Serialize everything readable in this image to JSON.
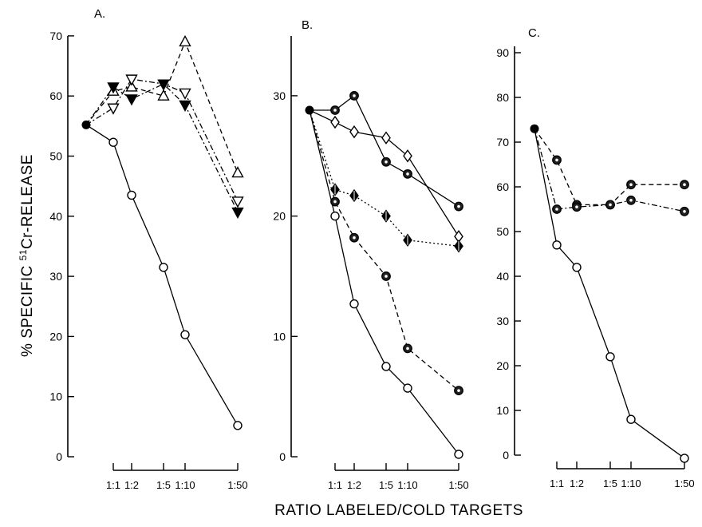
{
  "figure": {
    "ylabel_prefix": "% SPECIFIC ",
    "ylabel_sup": "51",
    "ylabel_suffix": "Cr-RELEASE",
    "xlabel": "RATIO LABELED/COLD TARGETS"
  },
  "chart_data": [
    {
      "type": "line",
      "panel": "A.",
      "ylim": [
        0,
        70
      ],
      "yticks": [
        0,
        10,
        20,
        30,
        40,
        50,
        60,
        70
      ],
      "ytick_labels": [
        "0",
        "10",
        "20",
        "30",
        "40",
        "50",
        "60",
        "70"
      ],
      "x_categories": [
        "1:1",
        "1:2",
        "1:5",
        "1:10",
        "1:50"
      ],
      "start_point": "0:1",
      "grid": false,
      "series": [
        {
          "marker": "open-circle",
          "line": "solid",
          "points": [
            [
              "start",
              55.2
            ],
            [
              "1:1",
              52.3
            ],
            [
              "1:2",
              43.5
            ],
            [
              "1:5",
              31.5
            ],
            [
              "1:10",
              20.3
            ],
            [
              "1:50",
              5.2
            ]
          ]
        },
        {
          "marker": "open-triangle-up",
          "line": "dashed",
          "points": [
            [
              "start",
              55.2
            ],
            [
              "1:1",
              60.8
            ],
            [
              "1:2",
              61.5
            ],
            [
              "1:5",
              60.0
            ],
            [
              "1:10",
              69.0
            ],
            [
              "1:50",
              47.2
            ]
          ]
        },
        {
          "marker": "open-triangle-down",
          "line": "dash-dot",
          "points": [
            [
              "start",
              55.2
            ],
            [
              "1:1",
              58.0
            ],
            [
              "1:2",
              62.8
            ],
            [
              "1:5",
              62.0
            ],
            [
              "1:10",
              60.5
            ],
            [
              "1:50",
              42.5
            ]
          ]
        },
        {
          "marker": "filled-triangle-down",
          "line": "dash-dot",
          "points": [
            [
              "start",
              55.2
            ],
            [
              "1:1",
              61.5
            ],
            [
              "1:2",
              59.5
            ],
            [
              "1:5",
              62.0
            ],
            [
              "1:10",
              58.5
            ],
            [
              "1:50",
              40.7
            ]
          ]
        }
      ]
    },
    {
      "type": "line",
      "panel": "B.",
      "ylim": [
        0,
        35
      ],
      "yticks": [
        0,
        10,
        20,
        30
      ],
      "ytick_labels": [
        "0",
        "10",
        "20",
        "30"
      ],
      "x_categories": [
        "1:1",
        "1:2",
        "1:5",
        "1:10",
        "1:50"
      ],
      "start_point": "0:1",
      "grid": false,
      "series": [
        {
          "marker": "open-circle",
          "line": "solid",
          "points": [
            [
              "start",
              28.8
            ],
            [
              "1:1",
              20.0
            ],
            [
              "1:2",
              12.7
            ],
            [
              "1:5",
              7.5
            ],
            [
              "1:10",
              5.7
            ],
            [
              "1:50",
              0.2
            ]
          ]
        },
        {
          "marker": "dotted-circle",
          "line": "dashed",
          "points": [
            [
              "start",
              28.8
            ],
            [
              "1:1",
              21.2
            ],
            [
              "1:2",
              18.2
            ],
            [
              "1:5",
              15.0
            ],
            [
              "1:10",
              9.0
            ],
            [
              "1:50",
              5.5
            ]
          ]
        },
        {
          "marker": "open-diamond",
          "line": "solid",
          "points": [
            [
              "start",
              28.8
            ],
            [
              "1:1",
              27.8
            ],
            [
              "1:2",
              27.0
            ],
            [
              "1:5",
              26.5
            ],
            [
              "1:10",
              25.0
            ],
            [
              "1:50",
              18.3
            ]
          ]
        },
        {
          "marker": "dotted-circle",
          "line": "solid",
          "points": [
            [
              "start",
              28.8
            ],
            [
              "1:1",
              28.8
            ],
            [
              "1:2",
              30.0
            ],
            [
              "1:5",
              24.5
            ],
            [
              "1:10",
              23.5
            ],
            [
              "1:50",
              20.8
            ]
          ]
        },
        {
          "marker": "filled-diamond",
          "line": "dotted",
          "points": [
            [
              "start",
              28.8
            ],
            [
              "1:1",
              22.2
            ],
            [
              "1:2",
              21.7
            ],
            [
              "1:5",
              20.0
            ],
            [
              "1:10",
              18.0
            ],
            [
              "1:50",
              17.5
            ]
          ]
        }
      ]
    },
    {
      "type": "line",
      "panel": "C.",
      "ylim": [
        0,
        95
      ],
      "yticks": [
        0,
        10,
        20,
        30,
        40,
        50,
        60,
        70,
        80,
        90
      ],
      "ytick_labels": [
        "0",
        "10",
        "20",
        "30",
        "40",
        "50",
        "60",
        "70",
        "80",
        "90"
      ],
      "x_categories": [
        "1:1",
        "1:2",
        "1:5",
        "1:10",
        "1:50"
      ],
      "start_point": "0:1",
      "grid": false,
      "series": [
        {
          "marker": "open-circle",
          "line": "solid",
          "points": [
            [
              "start",
              73.0
            ],
            [
              "1:1",
              47.0
            ],
            [
              "1:2",
              42.0
            ],
            [
              "1:5",
              22.0
            ],
            [
              "1:10",
              8.0
            ],
            [
              "1:50",
              -0.7
            ]
          ]
        },
        {
          "marker": "dotted-circle",
          "line": "dashed",
          "points": [
            [
              "start",
              73.0
            ],
            [
              "1:1",
              66.0
            ],
            [
              "1:2",
              56.0
            ],
            [
              "1:5",
              56.0
            ],
            [
              "1:10",
              60.5
            ],
            [
              "1:50",
              60.5
            ]
          ]
        },
        {
          "marker": "dotted-circle",
          "line": "dash-dot",
          "points": [
            [
              "start",
              73.0
            ],
            [
              "1:1",
              55.0
            ],
            [
              "1:2",
              55.5
            ],
            [
              "1:5",
              56.0
            ],
            [
              "1:10",
              57.0
            ],
            [
              "1:50",
              54.5
            ]
          ]
        }
      ]
    }
  ]
}
